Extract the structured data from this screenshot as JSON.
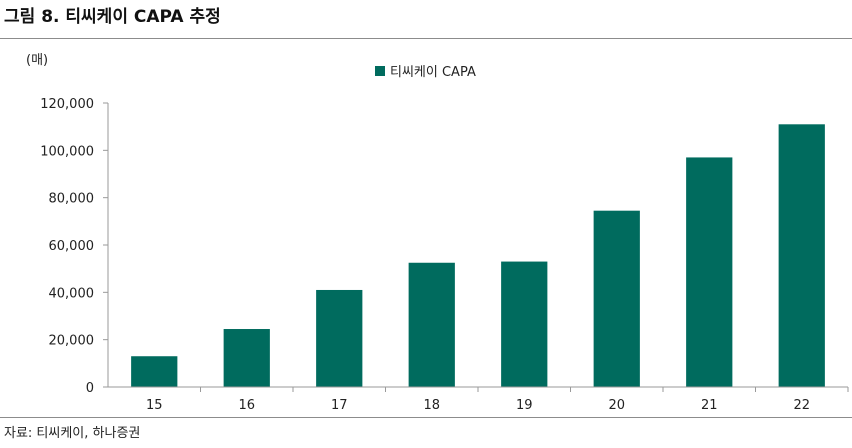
{
  "figure": {
    "title": "그림 8. 티씨케이 CAPA 추정",
    "source": "자료: 티씨케이, 하나증권"
  },
  "colors": {
    "bar": "#006b5e",
    "axis": "#9a9a9a",
    "text": "#222222"
  },
  "chart_data": {
    "type": "bar",
    "title": "",
    "xlabel": "",
    "ylabel": "",
    "unit_label": "(매)",
    "categories": [
      "15",
      "16",
      "17",
      "18",
      "19",
      "20",
      "21",
      "22"
    ],
    "series": [
      {
        "name": "티씨케이 CAPA",
        "values": [
          13000,
          24500,
          41000,
          52500,
          53000,
          74500,
          97000,
          111000
        ]
      }
    ],
    "ylim": [
      0,
      120000
    ],
    "yticks": [
      0,
      20000,
      40000,
      60000,
      80000,
      100000,
      120000
    ],
    "ytick_labels": [
      "0",
      "20,000",
      "40,000",
      "60,000",
      "80,000",
      "100,000",
      "120,000"
    ],
    "grid": false,
    "legend_position": "top-center"
  }
}
